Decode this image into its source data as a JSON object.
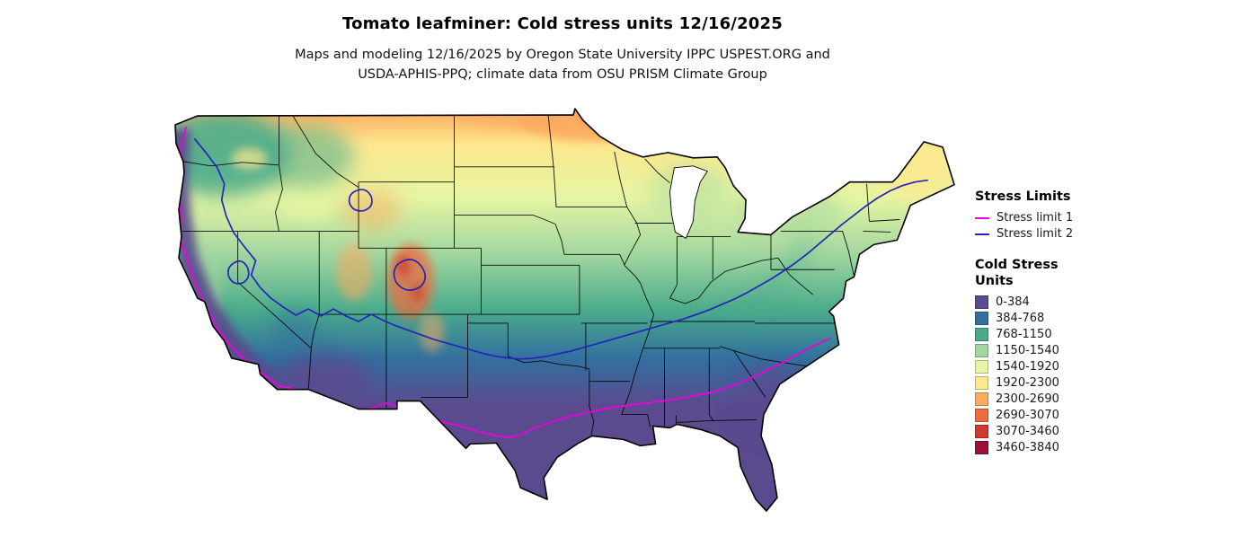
{
  "header": {
    "title": "Tomato leafminer: Cold stress units 12/16/2025",
    "subtitle_line1": "Maps and modeling 12/16/2025 by Oregon State University IPPC USPEST.ORG and",
    "subtitle_line2": "USDA-APHIS-PPQ; climate data from OSU PRISM Climate Group"
  },
  "legend": {
    "stress_limits": {
      "heading": "Stress Limits",
      "items": [
        {
          "label": "Stress limit 1",
          "color": "#ee00dd"
        },
        {
          "label": "Stress limit 2",
          "color": "#2525bb"
        }
      ]
    },
    "cold_stress": {
      "heading": "Cold Stress Units",
      "items": [
        {
          "label": "0-384",
          "color": "#5b4a8e"
        },
        {
          "label": "384-768",
          "color": "#33709f"
        },
        {
          "label": "768-1150",
          "color": "#4aab8c"
        },
        {
          "label": "1150-1540",
          "color": "#a3d7a0"
        },
        {
          "label": "1540-1920",
          "color": "#e6f5a3"
        },
        {
          "label": "1920-2300",
          "color": "#fde88e"
        },
        {
          "label": "2300-2690",
          "color": "#fbaa5e"
        },
        {
          "label": "2690-3070",
          "color": "#ee6c40"
        },
        {
          "label": "3070-3460",
          "color": "#d03a2e"
        },
        {
          "label": "3460-3840",
          "color": "#9a1039"
        }
      ]
    }
  }
}
